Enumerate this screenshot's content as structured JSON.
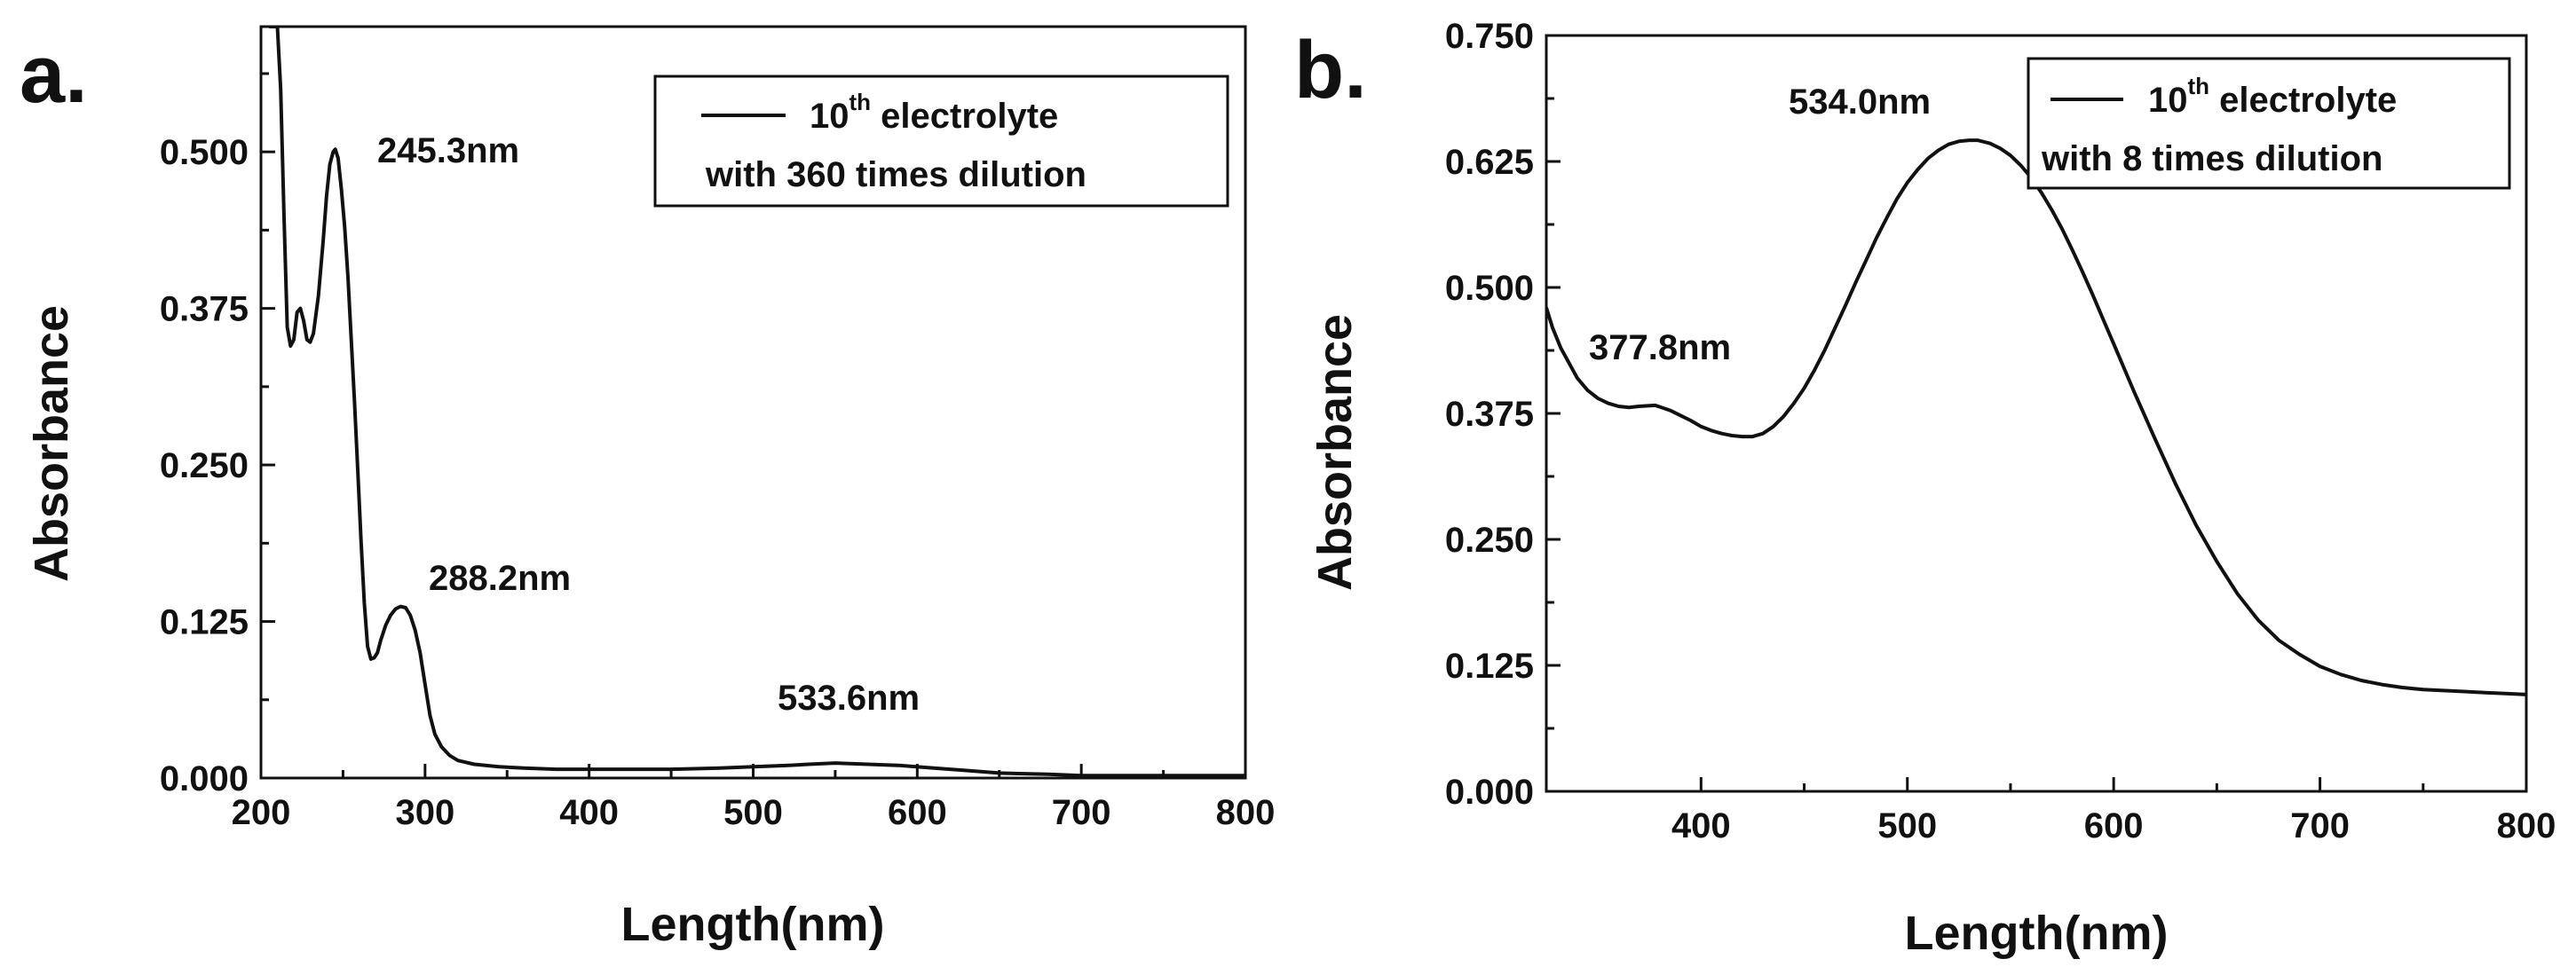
{
  "chart_data": [
    {
      "type": "line",
      "panel_label": "a.",
      "xlabel": "Length(nm)",
      "ylabel": "Absorbance",
      "xlim": [
        200,
        800
      ],
      "ylim": [
        0,
        0.6
      ],
      "x_ticks": [
        200,
        300,
        400,
        500,
        600,
        700,
        800
      ],
      "x_tick_labels": [
        "200",
        "300",
        "400",
        "500",
        "600",
        "700",
        "800"
      ],
      "y_ticks": [
        0,
        0.125,
        0.25,
        0.375,
        0.5
      ],
      "y_tick_labels": [
        "0.000",
        "0.125",
        "0.250",
        "0.375",
        "0.500"
      ],
      "grid": false,
      "legend": {
        "position": "top-right",
        "line1_prefix": "10",
        "line1_sup": "th",
        "line1_suffix": " electrolyte",
        "line2": "with 360 times dilution"
      },
      "annotations": [
        {
          "text": "245.3nm",
          "x": 245.3,
          "y": 0.5
        },
        {
          "text": "288.2nm",
          "x": 288.2,
          "y": 0.14
        },
        {
          "text": "533.6nm",
          "x": 533.6,
          "y": 0.012
        }
      ],
      "series": [
        {
          "name": "10th electrolyte with 360 times dilution",
          "x": [
            205,
            208,
            210,
            212,
            214,
            216,
            218,
            220,
            222,
            224,
            226,
            228,
            230,
            232,
            235,
            238,
            240,
            242,
            244,
            245.3,
            247,
            249,
            251,
            253,
            255,
            257,
            259,
            261,
            263,
            265,
            267,
            269,
            271,
            273,
            276,
            279,
            282,
            285,
            288.2,
            291,
            294,
            297,
            300,
            303,
            306,
            310,
            315,
            320,
            330,
            345,
            360,
            380,
            400,
            420,
            450,
            480,
            500,
            520,
            533.6,
            550,
            570,
            590,
            610,
            630,
            650,
            680,
            700,
            730,
            760,
            800
          ],
          "y": [
            0.6,
            0.6,
            0.6,
            0.55,
            0.45,
            0.36,
            0.345,
            0.35,
            0.372,
            0.375,
            0.365,
            0.35,
            0.348,
            0.355,
            0.385,
            0.43,
            0.465,
            0.49,
            0.5,
            0.502,
            0.495,
            0.47,
            0.44,
            0.4,
            0.35,
            0.3,
            0.245,
            0.19,
            0.14,
            0.105,
            0.095,
            0.096,
            0.1,
            0.11,
            0.122,
            0.13,
            0.135,
            0.137,
            0.136,
            0.13,
            0.118,
            0.1,
            0.075,
            0.05,
            0.035,
            0.025,
            0.018,
            0.014,
            0.011,
            0.009,
            0.008,
            0.007,
            0.007,
            0.007,
            0.007,
            0.008,
            0.009,
            0.01,
            0.011,
            0.012,
            0.011,
            0.01,
            0.008,
            0.006,
            0.004,
            0.003,
            0.002,
            0.002,
            0.002,
            0.002
          ]
        }
      ]
    },
    {
      "type": "line",
      "panel_label": "b.",
      "xlabel": "Length(nm)",
      "ylabel": "Absorbance",
      "xlim": [
        325,
        800
      ],
      "ylim": [
        0,
        0.75
      ],
      "x_ticks": [
        400,
        500,
        600,
        700,
        800
      ],
      "x_tick_labels": [
        "400",
        "500",
        "600",
        "700",
        "800"
      ],
      "y_ticks": [
        0,
        0.125,
        0.25,
        0.375,
        0.5,
        0.625,
        0.75
      ],
      "y_tick_labels": [
        "0.000",
        "0.125",
        "0.250",
        "0.375",
        "0.500",
        "0.625",
        "0.750"
      ],
      "grid": false,
      "legend": {
        "position": "top-right",
        "line1_prefix": "10",
        "line1_sup": "th",
        "line1_suffix": " electrolyte",
        "line2": "with 8 times dilution"
      },
      "annotations": [
        {
          "text": "534.0nm",
          "x": 534.0,
          "y": 0.645
        },
        {
          "text": "377.8nm",
          "x": 377.8,
          "y": 0.385
        }
      ],
      "series": [
        {
          "name": "10th electrolyte with 8 times dilution",
          "x": [
            325,
            328,
            332,
            336,
            340,
            345,
            350,
            355,
            360,
            365,
            370,
            377.8,
            385,
            390,
            395,
            400,
            405,
            410,
            415,
            420,
            425,
            430,
            435,
            440,
            445,
            450,
            455,
            460,
            465,
            470,
            475,
            480,
            485,
            490,
            495,
            500,
            505,
            510,
            515,
            520,
            525,
            530,
            534,
            540,
            545,
            550,
            555,
            560,
            565,
            570,
            575,
            580,
            585,
            590,
            595,
            600,
            605,
            610,
            620,
            630,
            640,
            650,
            660,
            670,
            680,
            690,
            700,
            710,
            720,
            730,
            740,
            750,
            760,
            770,
            780,
            790,
            800
          ],
          "y": [
            0.48,
            0.46,
            0.44,
            0.425,
            0.41,
            0.398,
            0.39,
            0.385,
            0.382,
            0.381,
            0.382,
            0.383,
            0.378,
            0.373,
            0.368,
            0.362,
            0.358,
            0.355,
            0.353,
            0.352,
            0.352,
            0.355,
            0.362,
            0.372,
            0.385,
            0.4,
            0.418,
            0.438,
            0.46,
            0.482,
            0.505,
            0.527,
            0.549,
            0.569,
            0.588,
            0.604,
            0.617,
            0.628,
            0.636,
            0.642,
            0.645,
            0.646,
            0.646,
            0.643,
            0.638,
            0.631,
            0.621,
            0.609,
            0.594,
            0.577,
            0.558,
            0.537,
            0.515,
            0.492,
            0.468,
            0.444,
            0.42,
            0.396,
            0.35,
            0.305,
            0.264,
            0.228,
            0.196,
            0.17,
            0.15,
            0.136,
            0.124,
            0.116,
            0.11,
            0.106,
            0.103,
            0.101,
            0.1,
            0.099,
            0.098,
            0.097,
            0.096
          ]
        }
      ]
    }
  ]
}
